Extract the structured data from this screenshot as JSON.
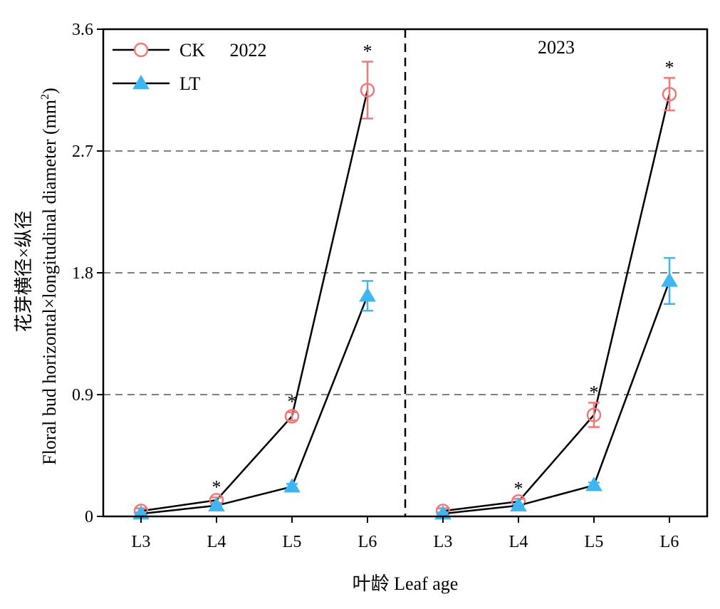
{
  "chart_data": {
    "type": "line",
    "xlabel": "叶龄 Leaf age",
    "ylabel": "花芽横径×纵径",
    "ylabel_en": "Floral bud horizontal×longitudinal diameter (mm",
    "ylabel_sup": "2",
    "ylabel_close": ")",
    "ylim": [
      0,
      3.6
    ],
    "yticks": [
      0,
      0.9,
      1.8,
      2.7,
      3.6
    ],
    "ytick_labels": [
      "0",
      "0.9",
      "1.8",
      "2.7",
      "3.6"
    ],
    "grid_y_dashed": [
      0.9,
      1.8,
      2.7
    ],
    "legend_position": "top-left",
    "colors": {
      "CK": "#f07878",
      "LT": "#3fb6f2",
      "line": "#000000"
    },
    "panels": [
      {
        "label": "2022",
        "categories": [
          "L3",
          "L4",
          "L5",
          "L6"
        ],
        "series": [
          {
            "name": "CK",
            "values": [
              0.04,
              0.12,
              0.74,
              3.15
            ],
            "errors": [
              0.02,
              0.02,
              0.03,
              0.21
            ],
            "marker": "circle"
          },
          {
            "name": "LT",
            "values": [
              0.02,
              0.08,
              0.22,
              1.63
            ],
            "errors": [
              0.01,
              0.01,
              0.02,
              0.11
            ],
            "marker": "triangle"
          }
        ],
        "significance": [
          "",
          "*",
          "*",
          "*"
        ]
      },
      {
        "label": "2023",
        "categories": [
          "L3",
          "L4",
          "L5",
          "L6"
        ],
        "series": [
          {
            "name": "CK",
            "values": [
              0.04,
              0.11,
              0.75,
              3.12
            ],
            "errors": [
              0.02,
              0.02,
              0.09,
              0.12
            ],
            "marker": "circle"
          },
          {
            "name": "LT",
            "values": [
              0.02,
              0.08,
              0.23,
              1.74
            ],
            "errors": [
              0.01,
              0.01,
              0.02,
              0.17
            ],
            "marker": "triangle"
          }
        ],
        "significance": [
          "",
          "*",
          "*",
          "*"
        ]
      }
    ],
    "legend": [
      {
        "name": "CK",
        "marker": "circle"
      },
      {
        "name": "LT",
        "marker": "triangle"
      }
    ]
  }
}
